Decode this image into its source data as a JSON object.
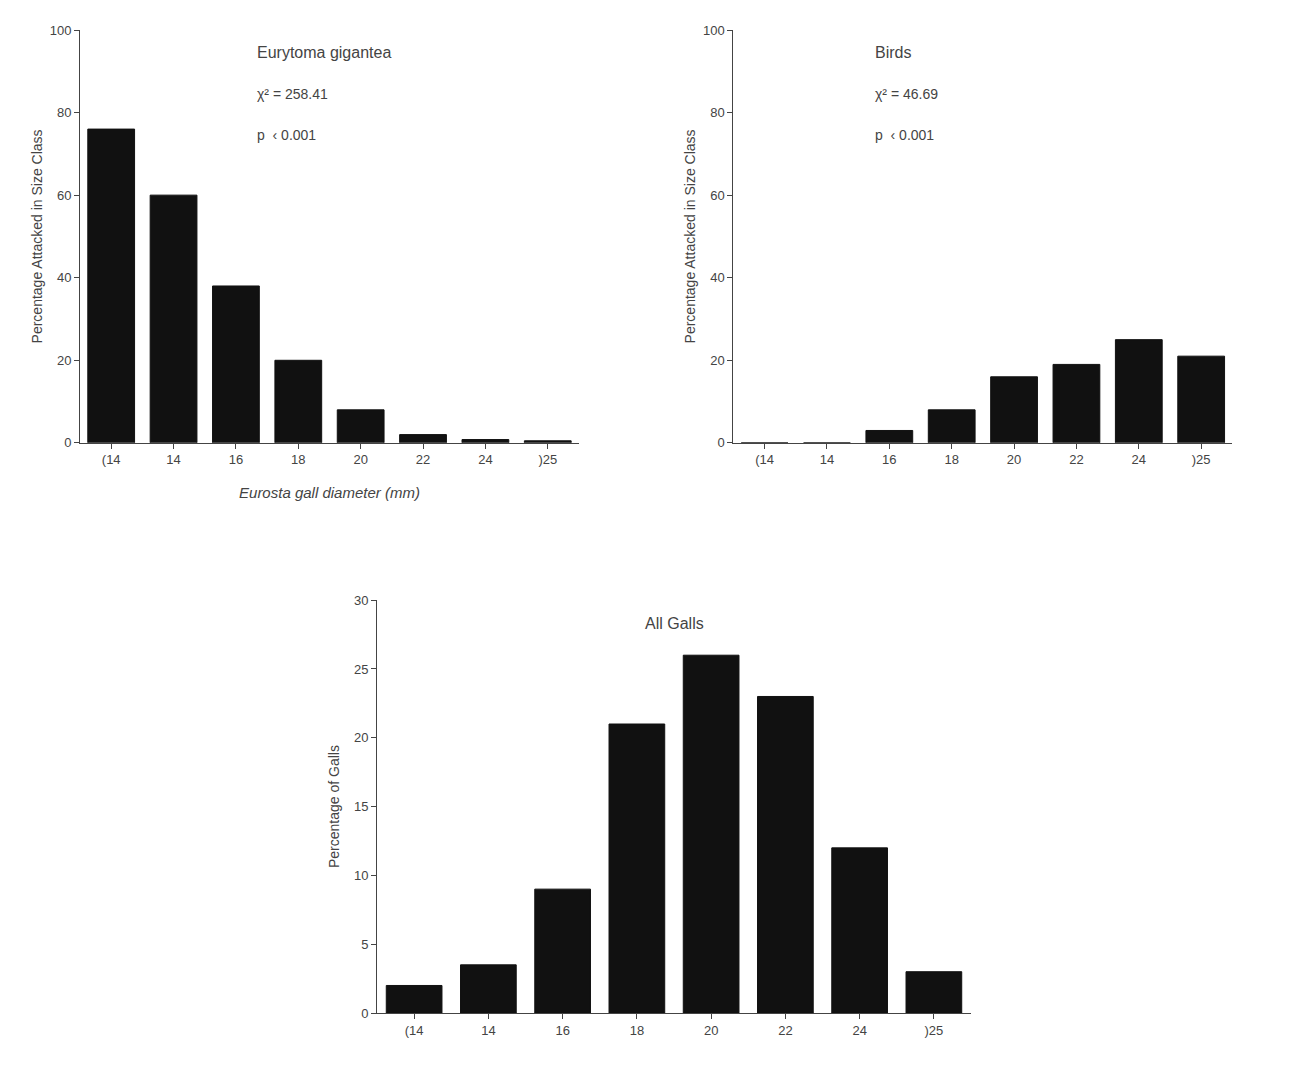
{
  "chart_data": [
    {
      "type": "bar",
      "title": "Eurytoma gigantea",
      "annotations": [
        "χ² = 258.41",
        "p  ‹ 0.001"
      ],
      "xlabel": "Eurosta gall diameter (mm)",
      "ylabel": "Percentage Attacked in Size Class",
      "categories": [
        "(14",
        "14",
        "16",
        "18",
        "20",
        "22",
        "24",
        ")25"
      ],
      "values": [
        76,
        60,
        38,
        20,
        8,
        2,
        0.8,
        0.5
      ],
      "color": "#111111",
      "ylim": [
        0,
        100
      ],
      "yticks": [
        0,
        20,
        40,
        60,
        80,
        100
      ],
      "grid": false
    },
    {
      "type": "bar",
      "title": "Birds",
      "annotations": [
        "χ² = 46.69",
        "p  ‹ 0.001"
      ],
      "ylabel": "Percentage Attacked in Size Class",
      "categories": [
        "(14",
        "14",
        "16",
        "18",
        "20",
        "22",
        "24",
        ")25"
      ],
      "values": [
        0,
        0,
        3,
        8,
        16,
        19,
        25,
        21
      ],
      "color": "#111111",
      "ylim": [
        0,
        100
      ],
      "yticks": [
        0,
        20,
        40,
        60,
        80,
        100
      ],
      "grid": false
    },
    {
      "type": "bar",
      "title": "All Galls",
      "ylabel": "Percentage of Galls",
      "categories": [
        "(14",
        "14",
        "16",
        "18",
        "20",
        "22",
        "24",
        ")25"
      ],
      "values": [
        2,
        3.5,
        9,
        21,
        26,
        23,
        12,
        3
      ],
      "color": "#111111",
      "ylim": [
        0,
        30
      ],
      "yticks": [
        0,
        5,
        10,
        15,
        20,
        25,
        30
      ],
      "grid": false
    }
  ]
}
